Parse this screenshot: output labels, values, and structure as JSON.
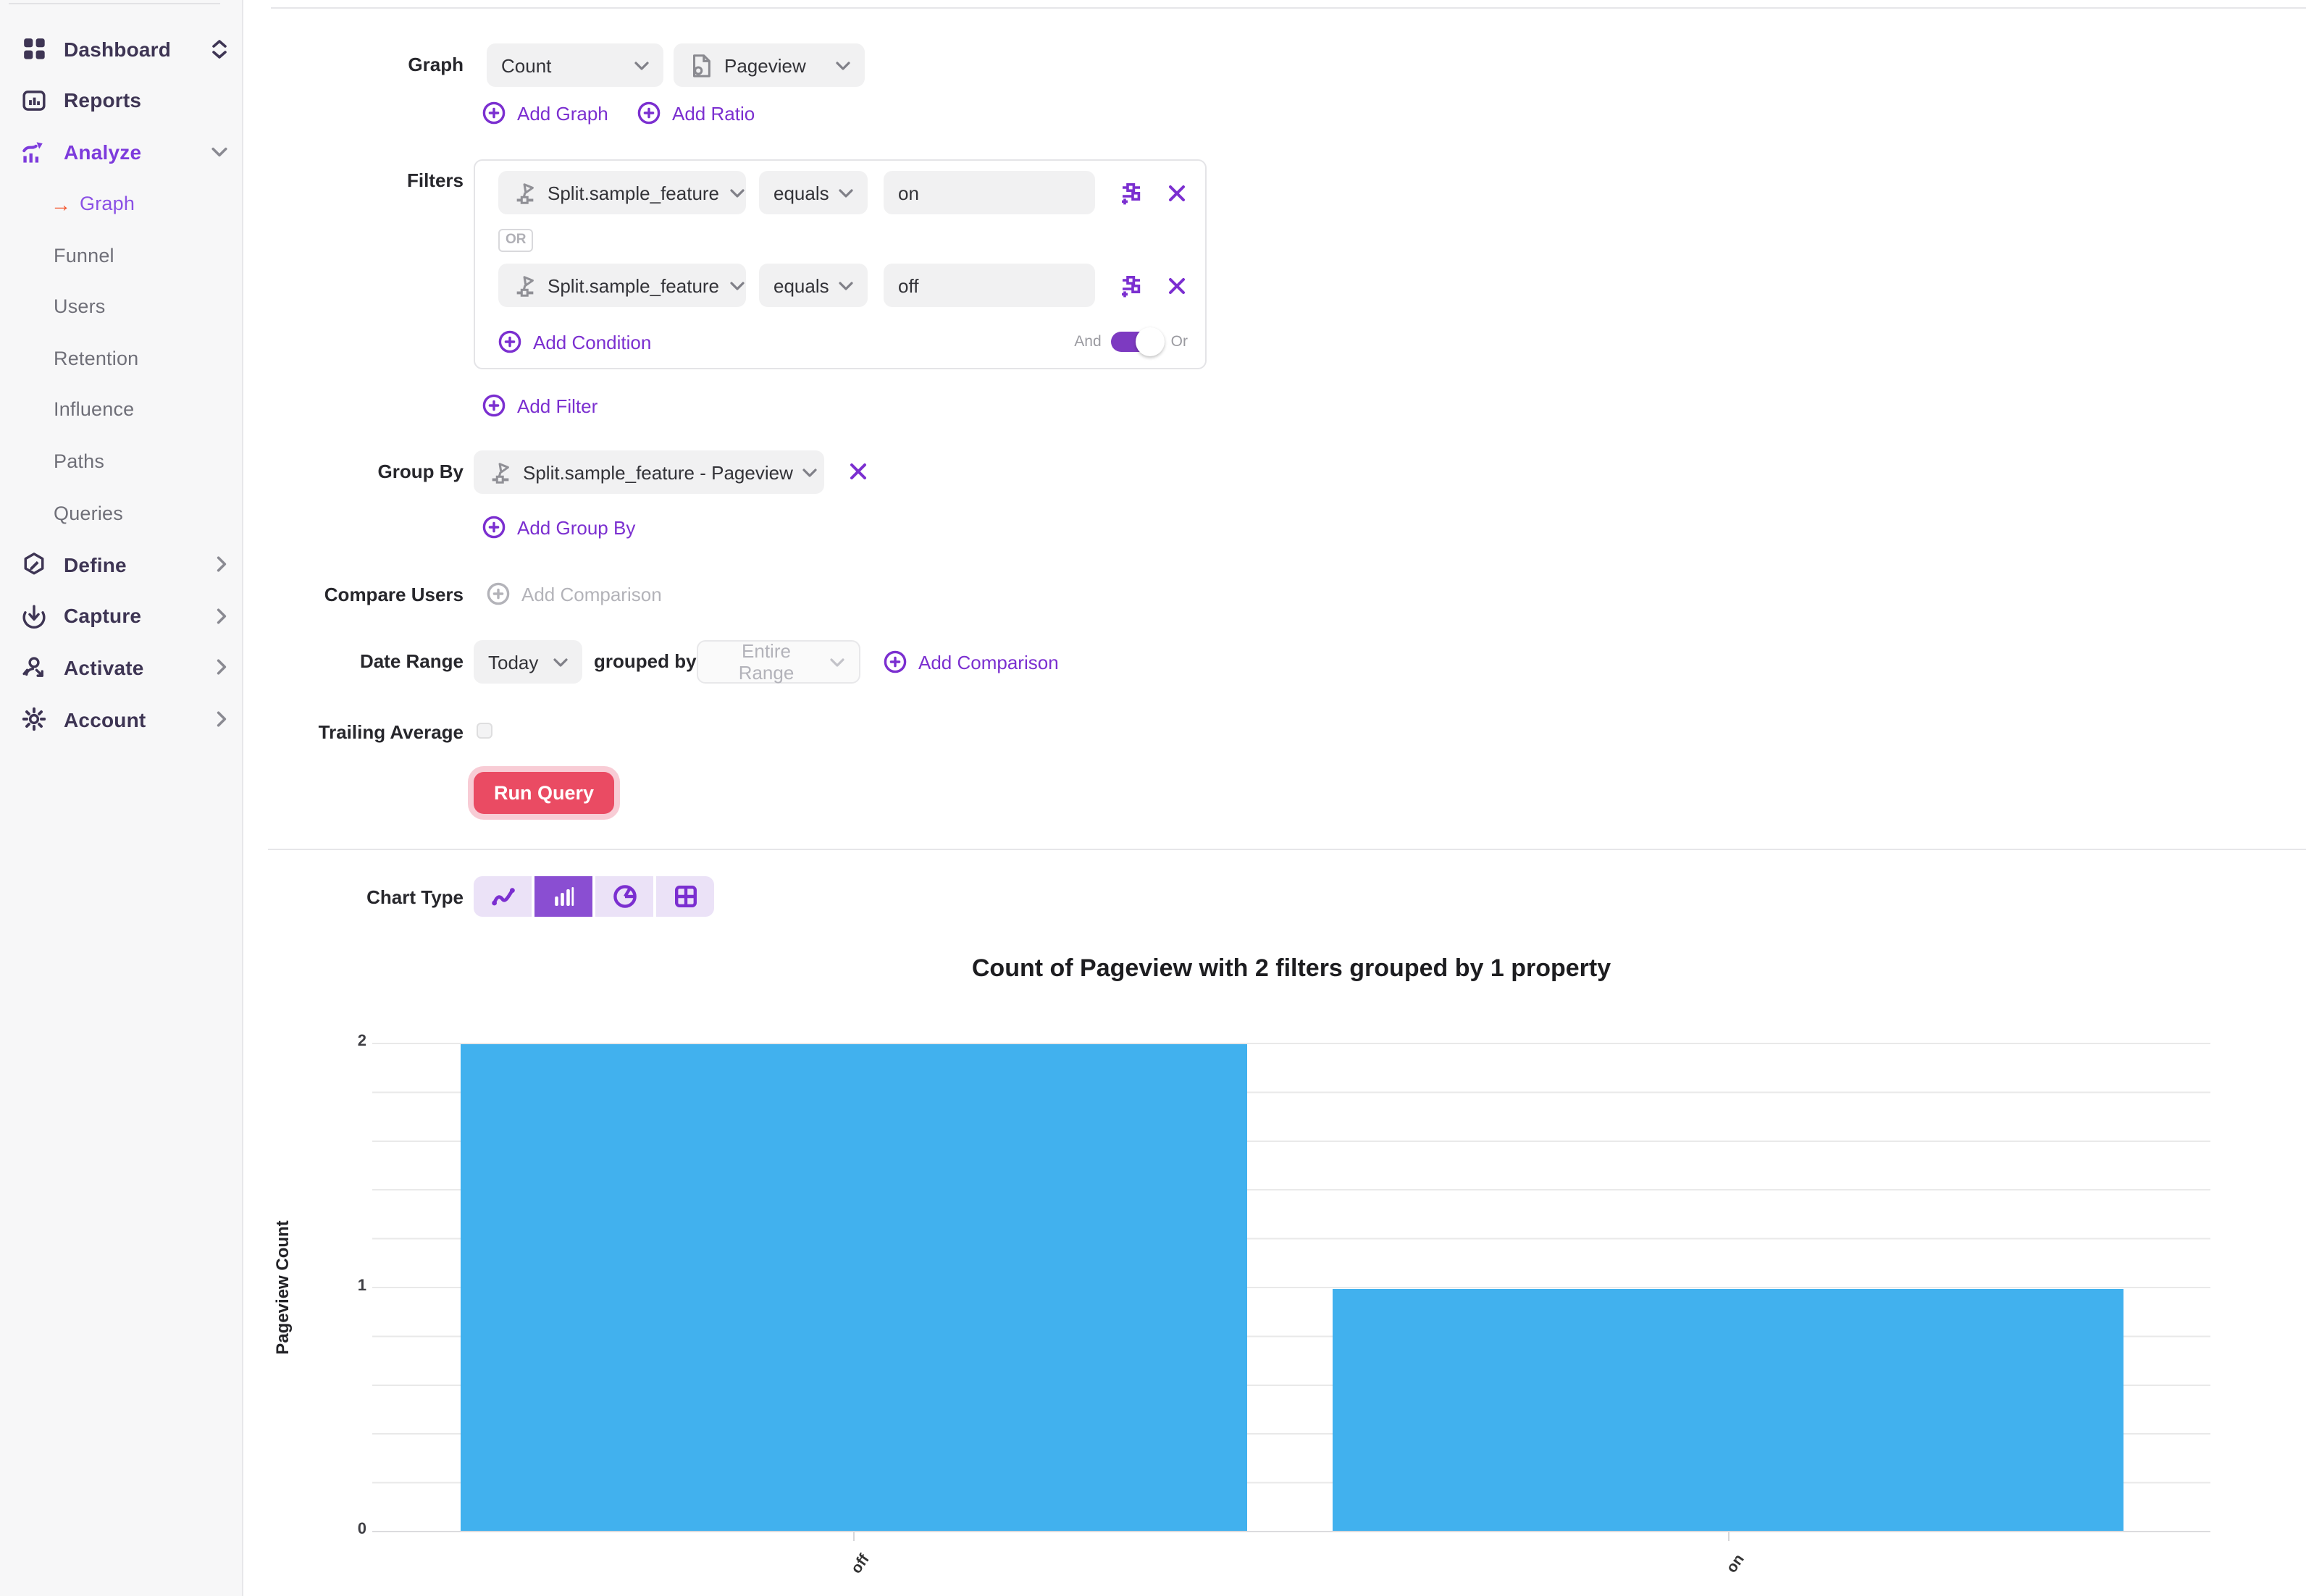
{
  "icons": {
    "arrow_right": "→"
  },
  "sidebar": {
    "items": [
      {
        "label": "Dashboard"
      },
      {
        "label": "Reports"
      },
      {
        "label": "Analyze"
      },
      {
        "label": "Graph"
      },
      {
        "label": "Funnel"
      },
      {
        "label": "Users"
      },
      {
        "label": "Retention"
      },
      {
        "label": "Influence"
      },
      {
        "label": "Paths"
      },
      {
        "label": "Queries"
      },
      {
        "label": "Define"
      },
      {
        "label": "Capture"
      },
      {
        "label": "Activate"
      },
      {
        "label": "Account"
      }
    ]
  },
  "query": {
    "graph_label": "Graph",
    "metric": "Count",
    "event": "Pageview",
    "add_graph": "Add Graph",
    "add_ratio": "Add Ratio",
    "filters_label": "Filters",
    "filters": [
      {
        "field": "Split.sample_feature",
        "operator": "equals",
        "value": "on"
      },
      {
        "field": "Split.sample_feature",
        "operator": "equals",
        "value": "off"
      }
    ],
    "or_badge": "OR",
    "add_condition": "Add Condition",
    "and_label": "And",
    "or_label": "Or",
    "add_filter": "Add Filter",
    "group_by_label": "Group By",
    "group_by_value": "Split.sample_feature - Pageview",
    "add_group_by": "Add Group By",
    "compare_users_label": "Compare Users",
    "compare_users_add": "Add Comparison",
    "date_range_label": "Date Range",
    "date_range_value": "Today",
    "grouped_by_label": "grouped by",
    "interval_value": "Entire Range",
    "add_comparison": "Add Comparison",
    "trailing_average_label": "Trailing Average",
    "run_query_label": "Run Query",
    "chart_type_label": "Chart Type"
  },
  "chart_data": {
    "type": "bar",
    "title": "Count of Pageview with 2 filters grouped by 1 property",
    "categories": [
      "off",
      "on"
    ],
    "values": [
      2,
      1
    ],
    "xlabel": "",
    "ylabel": "Pageview Count",
    "ylim": [
      0,
      2
    ],
    "yticks": [
      2,
      1,
      0
    ],
    "grid_step": 0.2,
    "grid": "horizontal",
    "legend": "none",
    "x_tick_rotation": -55,
    "bar_color": "#41b1ee"
  },
  "colors": {
    "accent_purple": "#7b2fd0",
    "active_nav_purple": "#7d3bdc",
    "arrow_orange": "#f4572e",
    "run_red": "#ea4b63",
    "bar_blue": "#41b1ee"
  }
}
